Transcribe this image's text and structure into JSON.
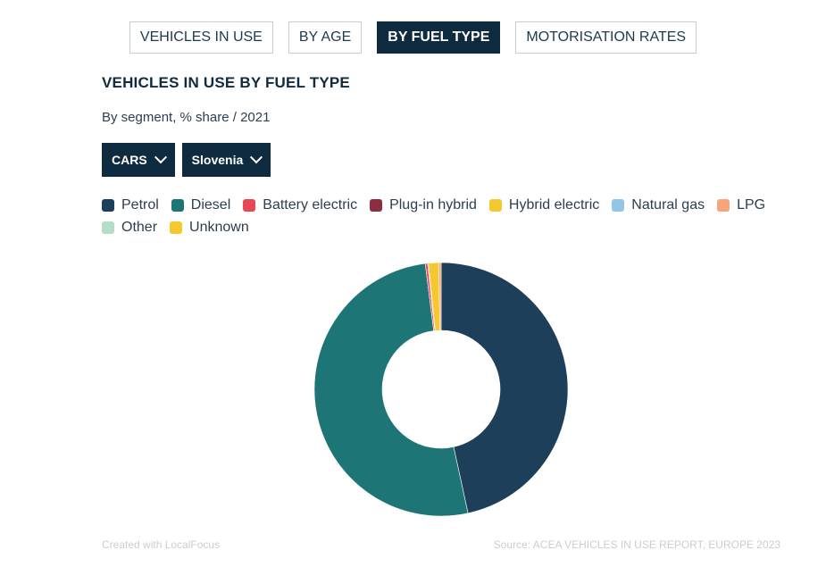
{
  "tabs": [
    {
      "label": "VEHICLES IN USE",
      "active": false
    },
    {
      "label": "BY AGE",
      "active": false
    },
    {
      "label": "BY FUEL TYPE",
      "active": true
    },
    {
      "label": "MOTORISATION RATES",
      "active": false
    }
  ],
  "dropdowns": {
    "segment": "CARS",
    "country": "Slovenia"
  },
  "chart_data": {
    "type": "pie",
    "donut": true,
    "title": "VEHICLES IN USE BY FUEL TYPE",
    "subtitle": "By segment, % share / 2021",
    "legend_position": "top-left",
    "categories": [
      "Petrol",
      "Diesel",
      "Battery electric",
      "Plug-in hybrid",
      "Hybrid electric",
      "Natural gas",
      "LPG",
      "Other",
      "Unknown"
    ],
    "values": [
      46.6,
      51.4,
      0.3,
      0.1,
      1.3,
      0.0,
      0.3,
      0.0,
      0.0
    ],
    "colors": [
      "#1e3f5a",
      "#1e7575",
      "#e84855",
      "#8c2d42",
      "#f6c830",
      "#92c5e8",
      "#f5a576",
      "#b5dcc4",
      "#f6c830"
    ]
  },
  "footer": {
    "credit": "Created with LocalFocus",
    "source": "Source:  ACEA VEHICLES IN USE REPORT, EUROPE 2023"
  }
}
